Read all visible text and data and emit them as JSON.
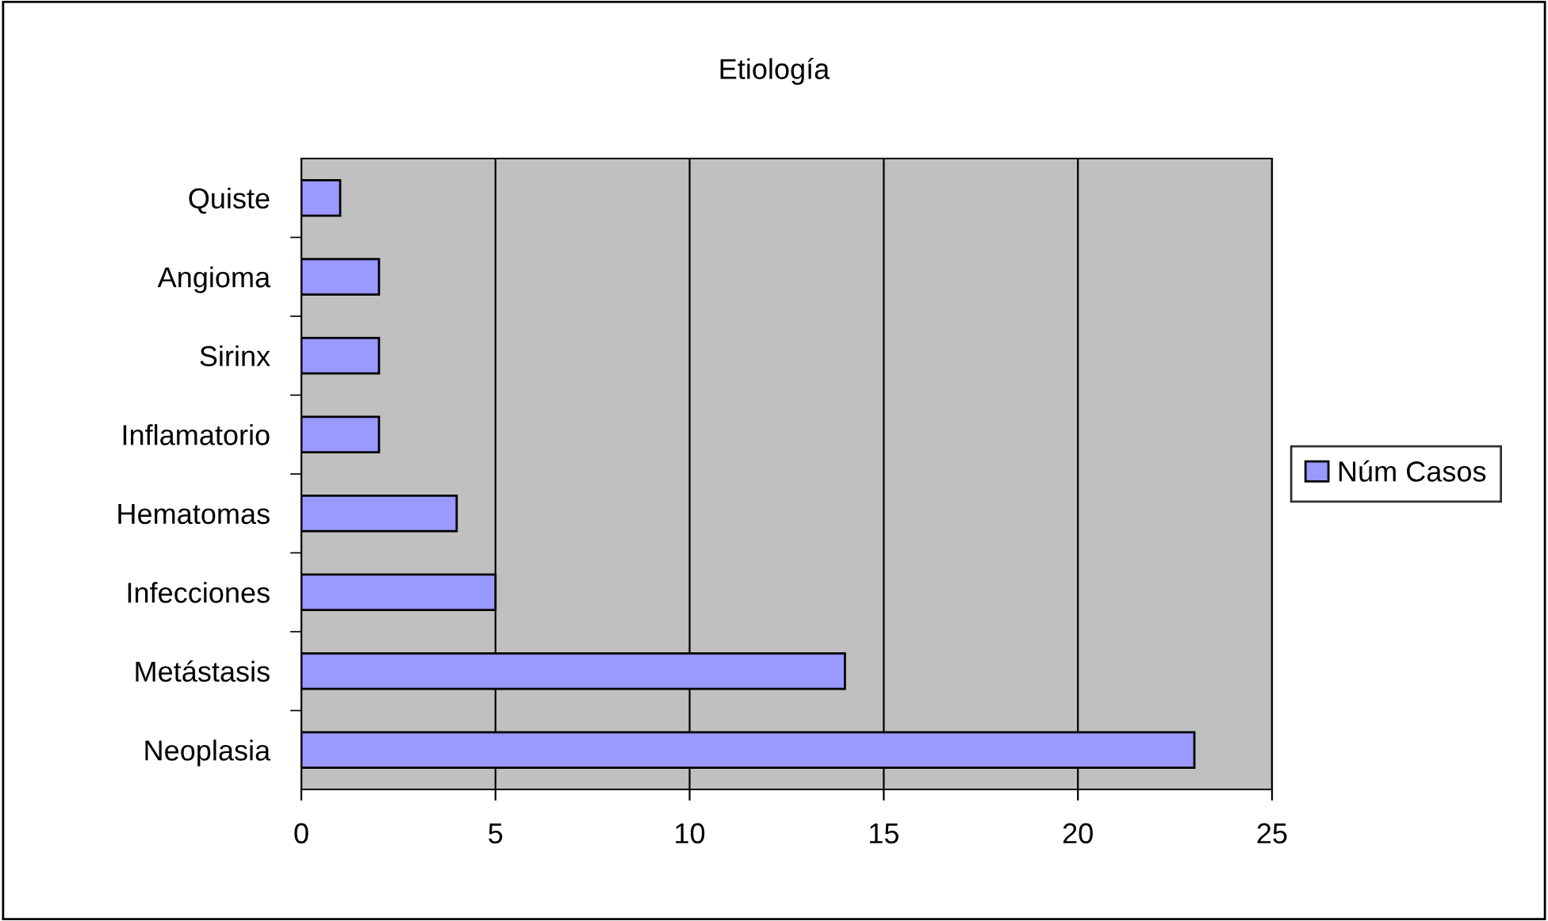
{
  "chart_data": {
    "type": "bar",
    "orientation": "horizontal",
    "title": "Etiología",
    "categories": [
      "Quiste",
      "Angioma",
      "Sirinx",
      "Inflamatorio",
      "Hematomas",
      "Infecciones",
      "Metástasis",
      "Neoplasia"
    ],
    "series": [
      {
        "name": "Núm Casos",
        "color": "#9999ff",
        "values": [
          1,
          2,
          2,
          2,
          4,
          5,
          14,
          23
        ]
      }
    ],
    "xlim": [
      0,
      25
    ],
    "xticks": [
      0,
      5,
      10,
      15,
      20,
      25
    ],
    "grid": "x",
    "legend": "right"
  }
}
